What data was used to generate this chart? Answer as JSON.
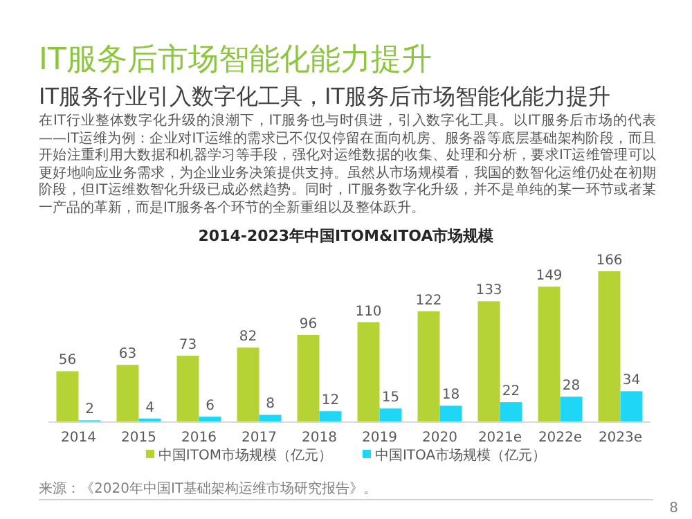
{
  "chart_data": {
    "type": "bar",
    "title": "IT服务后市场智能化能力提升",
    "subtitle": "IT服务行业引入数字化工具，IT服务后市场智能化能力提升",
    "annotations": [
      "在IT行业整体数字化升级的浪潮下，IT服务也与时俱进，引入数字化工具。以IT服务后市场的代表——IT运维为例：企业对IT运维的需求已不仅仅停留在面向机房、服务器等底层基础架构阶段，而且开始注重利用大数据和机器学习等手段，强化对运维数据的收集、处理和分析，要求IT运维管理可以更好地响应业务需求，为企业业务决策提供支持。虽然从市场规模看，我国的数智化运维仍处在初期阶段，但IT运维数智化升级已成必然趋势。同时，IT服务数字化升级，并不是单纯的某一环节或者某一产品的革新，而是IT服务各个环节的全新重组以及整体跃升。",
      "2014-2023年中国ITOM&ITOA市场规模",
      "来源：《2020年中国IT基础架构运维市场研究报告》。",
      "8"
    ],
    "categories": [
      "2014",
      "2015",
      "2016",
      "2017",
      "2018",
      "2019",
      "2020",
      "2021e",
      "2022e",
      "2023e"
    ],
    "series": [
      {
        "name": "中国ITOM市场规模（亿元）",
        "color": "#b5d334",
        "values": [
          56,
          63,
          73,
          82,
          96,
          110,
          122,
          133,
          149,
          166
        ]
      },
      {
        "name": "中国ITOA市场规模（亿元）",
        "color": "#1ed6f5",
        "values": [
          2,
          4,
          6,
          8,
          12,
          15,
          18,
          22,
          28,
          34
        ]
      }
    ],
    "data_labels": true,
    "legend": "bottom"
  }
}
